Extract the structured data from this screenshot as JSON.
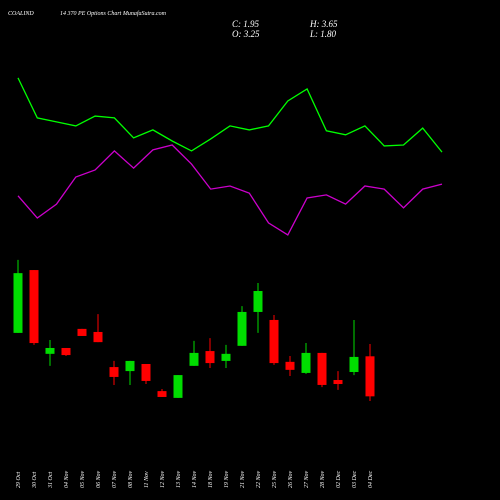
{
  "header": {
    "symbol": "COALIND",
    "subtitle": "14 370 PE Options Chart MunafaSutra.com",
    "close": "C: 1.95",
    "high": "H: 3.65",
    "open": "O: 3.25",
    "low": "L: 1.80"
  },
  "chart_data": {
    "type": "candlestick",
    "categories": [
      "29 Oct",
      "30 Oct",
      "31 Oct",
      "04 Nov",
      "05 Nov",
      "06 Nov",
      "07 Nov",
      "08 Nov",
      "11 Nov",
      "12 Nov",
      "13 Nov",
      "14 Nov",
      "18 Nov",
      "19 Nov",
      "21 Nov",
      "22 Nov",
      "25 Nov",
      "26 Nov",
      "27 Nov",
      "28 Nov",
      "02 Dec",
      "03 Dec",
      "04 Dec"
    ],
    "open": [
      4.01,
      6.05,
      3.33,
      3.52,
      4.14,
      4.04,
      2.9,
      2.77,
      3.0,
      2.12,
      1.9,
      2.94,
      3.42,
      3.1,
      3.59,
      4.69,
      4.43,
      3.07,
      2.71,
      3.36,
      2.48,
      2.74,
      3.25
    ],
    "high": [
      6.38,
      6.05,
      3.78,
      3.52,
      4.14,
      4.62,
      3.1,
      3.1,
      3.0,
      2.19,
      2.64,
      3.75,
      3.84,
      3.62,
      4.88,
      5.63,
      4.59,
      3.26,
      3.68,
      3.36,
      2.77,
      4.43,
      3.65
    ],
    "low": [
      4.01,
      3.62,
      2.94,
      3.26,
      3.91,
      3.71,
      2.32,
      2.32,
      2.35,
      1.93,
      1.9,
      2.94,
      2.87,
      2.87,
      3.59,
      4.01,
      2.97,
      2.61,
      2.68,
      2.25,
      2.16,
      2.64,
      1.8
    ],
    "close": [
      5.95,
      3.68,
      3.52,
      3.29,
      3.91,
      3.71,
      2.58,
      3.1,
      2.45,
      1.93,
      2.64,
      3.36,
      3.03,
      3.33,
      4.69,
      5.37,
      3.03,
      2.81,
      3.36,
      2.32,
      2.35,
      3.23,
      1.95
    ],
    "up_color": "#00dd00",
    "down_color": "#ff0000",
    "lines": [
      {
        "color": "#00ff00",
        "values": [
          12.29,
          10.99,
          10.86,
          10.73,
          11.05,
          10.99,
          10.34,
          10.6,
          10.24,
          9.92,
          10.31,
          10.73,
          10.6,
          10.73,
          11.54,
          11.93,
          10.57,
          10.44,
          10.73,
          10.08,
          10.11,
          10.66,
          9.88
        ]
      },
      {
        "color": "#cc00cc",
        "values": [
          8.46,
          7.74,
          8.19,
          9.07,
          9.3,
          9.92,
          9.36,
          9.95,
          10.11,
          9.49,
          8.68,
          8.78,
          8.55,
          7.58,
          7.19,
          8.39,
          8.49,
          8.19,
          8.78,
          8.68,
          8.07,
          8.68,
          8.84
        ]
      }
    ]
  }
}
